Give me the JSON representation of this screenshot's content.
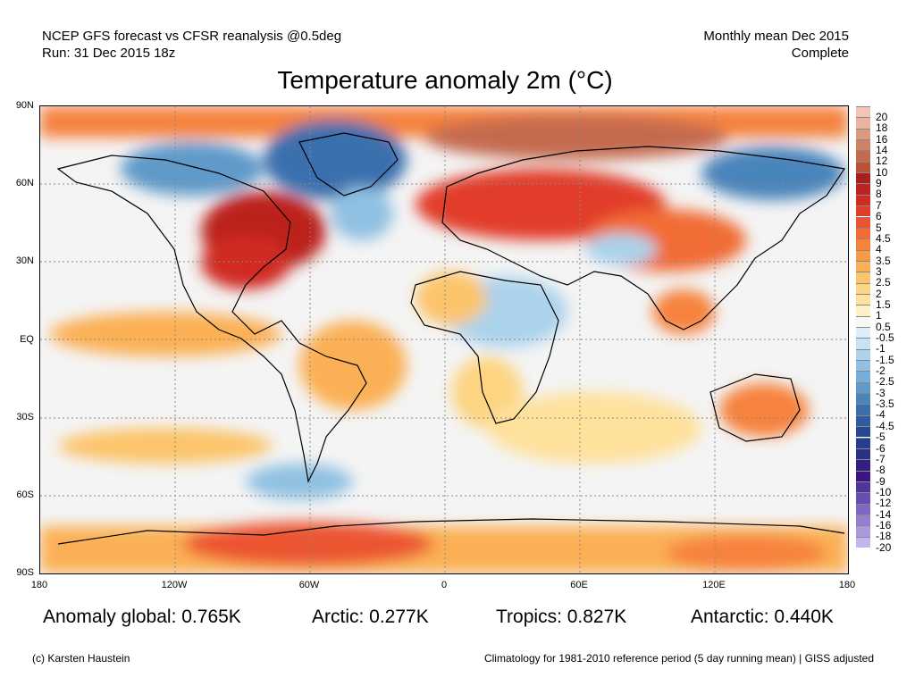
{
  "header": {
    "line1_left": "NCEP GFS forecast vs CFSR reanalysis @0.5deg",
    "line2_left": "Run: 31 Dec 2015 18z",
    "line1_right": "Monthly mean Dec 2015",
    "line2_right": "Complete"
  },
  "title": "Temperature anomaly 2m (°C)",
  "axes": {
    "lat_labels": [
      "90N",
      "60N",
      "30N",
      "EQ",
      "30S",
      "60S",
      "90S"
    ],
    "lon_labels": [
      "180",
      "120W",
      "60W",
      "0",
      "60E",
      "120E",
      "180"
    ]
  },
  "colorbar": {
    "labels": [
      "20",
      "18",
      "16",
      "14",
      "12",
      "10",
      "9",
      "8",
      "7",
      "6",
      "5",
      "4.5",
      "4",
      "3.5",
      "3",
      "2.5",
      "2",
      "1.5",
      "1",
      "0.5",
      "-0.5",
      "-1",
      "-1.5",
      "-2",
      "-2.5",
      "-3",
      "-3.5",
      "-4",
      "-4.5",
      "-5",
      "-6",
      "-7",
      "-8",
      "-9",
      "-10",
      "-12",
      "-14",
      "-16",
      "-18",
      "-20"
    ],
    "colors": [
      "#f4c4b4",
      "#eab39d",
      "#dc9a80",
      "#cf8266",
      "#c46a4f",
      "#b85338",
      "#a8201c",
      "#bc241f",
      "#d02b23",
      "#e23d2a",
      "#ec5430",
      "#f26c36",
      "#f6823d",
      "#f89945",
      "#fbb055",
      "#fcc46a",
      "#fdd582",
      "#fee19b",
      "#fef0c4",
      "#f7f7f3",
      "#ddeef8",
      "#c6e3f4",
      "#abd3ec",
      "#90c1e2",
      "#76aed7",
      "#5f9ac9",
      "#4a84bb",
      "#3a6fae",
      "#2e5ba1",
      "#254993",
      "#263c8c",
      "#2b2f88",
      "#321f84",
      "#3a1583",
      "#52339a",
      "#6a4db0",
      "#8166c3",
      "#967fd2",
      "#ab98df",
      "#c2b4ec"
    ]
  },
  "stats": {
    "global": "Anomaly global: 0.765K",
    "arctic": "Arctic: 0.277K",
    "tropics": "Tropics: 0.827K",
    "antarctic": "Antarctic: 0.440K"
  },
  "footer": {
    "left": "(c) Karsten Haustein",
    "right": "Climatology for 1981-2010 reference period (5 day running mean) | GISS adjusted"
  }
}
